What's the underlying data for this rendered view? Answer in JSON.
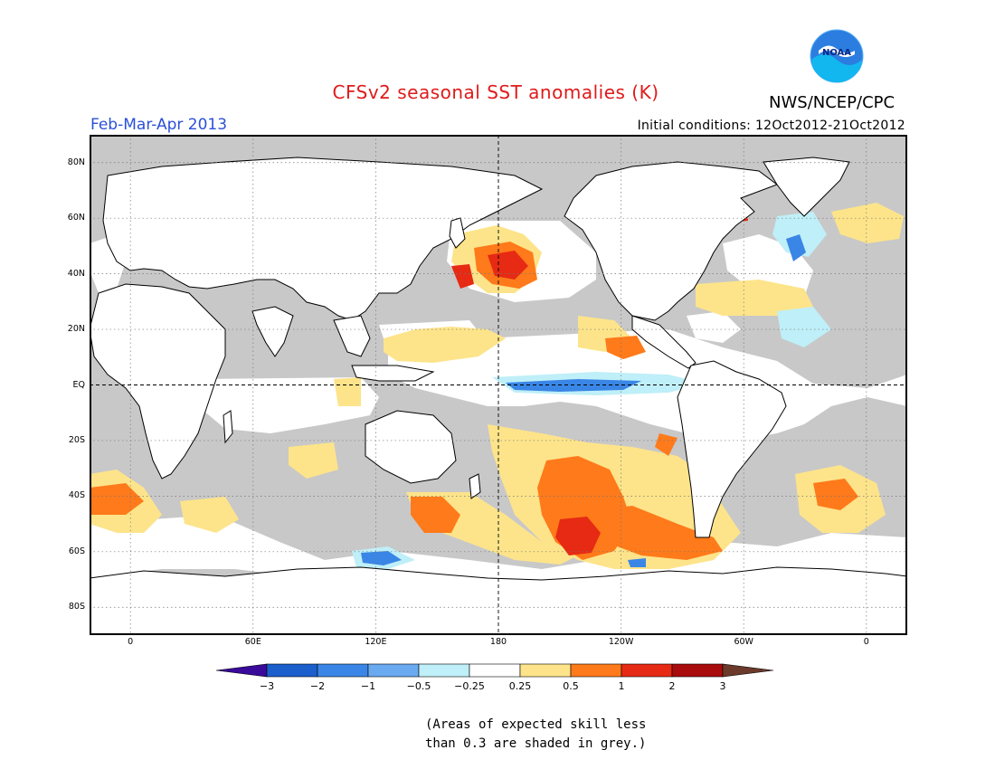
{
  "header": {
    "title": "CFSv2 seasonal SST anomalies (K)",
    "period": "Feb-Mar-Apr 2013",
    "agency": "NWS/NCEP/CPC",
    "logo_text": "NOAA",
    "initial_conditions": "Initial conditions: 12Oct2012-21Oct2012"
  },
  "map": {
    "projection": "cylindrical equidistant",
    "lon_range": [
      -20,
      380
    ],
    "lat_range": [
      -90,
      90
    ],
    "lat_ticks": [
      "80N",
      "60N",
      "40N",
      "20N",
      "EQ",
      "20S",
      "40S",
      "60S",
      "80S"
    ],
    "lon_ticks": [
      "0",
      "60E",
      "120E",
      "180",
      "120W",
      "60W",
      "0"
    ],
    "land_color": "#ffffff",
    "low_skill_color": "#c8c8c8"
  },
  "colorbar": {
    "tick_labels": [
      "-3",
      "-2",
      "-1",
      "-0.5",
      "-0.25",
      "0.25",
      "0.5",
      "1",
      "2",
      "3"
    ],
    "colors": [
      "#3a0a9a",
      "#1a5fcc",
      "#3a86e6",
      "#6aaaf0",
      "#bfeff8",
      "#ffffff",
      "#fde48a",
      "#ff7a1a",
      "#e62a14",
      "#a80c0c",
      "#6b3a2a"
    ]
  },
  "footnote": {
    "line1": "(Areas of expected skill less",
    "line2": "than 0.3 are shaded in grey.)"
  }
}
